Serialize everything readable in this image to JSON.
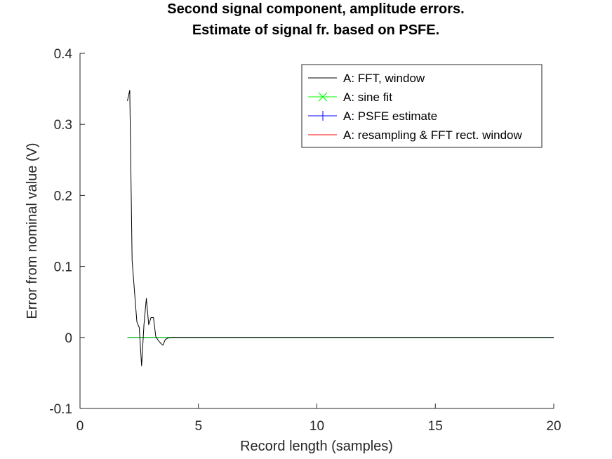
{
  "chart_data": {
    "type": "line",
    "title": "Second signal component, amplitude errors.",
    "subtitle": "Estimate of signal fr. based on PSFE.",
    "xlabel": "Record length (samples)",
    "ylabel": "Error from nominal value (V)",
    "xlim": [
      0,
      20
    ],
    "ylim": [
      -0.1,
      0.4
    ],
    "x_ticks": [
      "0",
      "5",
      "10",
      "15",
      "20"
    ],
    "y_ticks": [
      "-0.1",
      "0",
      "0.1",
      "0.2",
      "0.3",
      "0.4"
    ],
    "grid": false,
    "legend_position": "top-right",
    "series": [
      {
        "name": "A: FFT, window",
        "color": "#000000",
        "marker": "none",
        "x": [
          2.0,
          2.1,
          2.2,
          2.3,
          2.4,
          2.5,
          2.6,
          2.7,
          2.8,
          2.9,
          3.0,
          3.1,
          3.2,
          3.3,
          3.4,
          3.5,
          3.6,
          3.7,
          3.8,
          3.9,
          4.0,
          4.5,
          5.0,
          6.0,
          8.0,
          10.0,
          12.0,
          14.0,
          16.0,
          18.0,
          20.0
        ],
        "y": [
          0.333,
          0.348,
          0.108,
          0.065,
          0.022,
          0.014,
          -0.04,
          0.018,
          0.055,
          0.018,
          0.028,
          0.028,
          0.001,
          -0.004,
          -0.008,
          -0.011,
          -0.003,
          -0.001,
          -0.0005,
          0.0002,
          0.0,
          0.0,
          0.0,
          0.0,
          0.0,
          0.0,
          0.0,
          0.0,
          0.0,
          0.0,
          0.0
        ]
      },
      {
        "name": "A: sine fit",
        "color": "#00ff00",
        "marker": "x",
        "x": [
          2,
          20
        ],
        "y": [
          0,
          0
        ]
      },
      {
        "name": "A: PSFE estimate",
        "color": "#0000ff",
        "marker": "+",
        "x": [
          2,
          20
        ],
        "y": [
          0,
          0
        ]
      },
      {
        "name": "A: resampling & FFT rect. window",
        "color": "#ff0000",
        "marker": "none",
        "x": [
          2,
          20
        ],
        "y": [
          0,
          0
        ]
      }
    ]
  }
}
